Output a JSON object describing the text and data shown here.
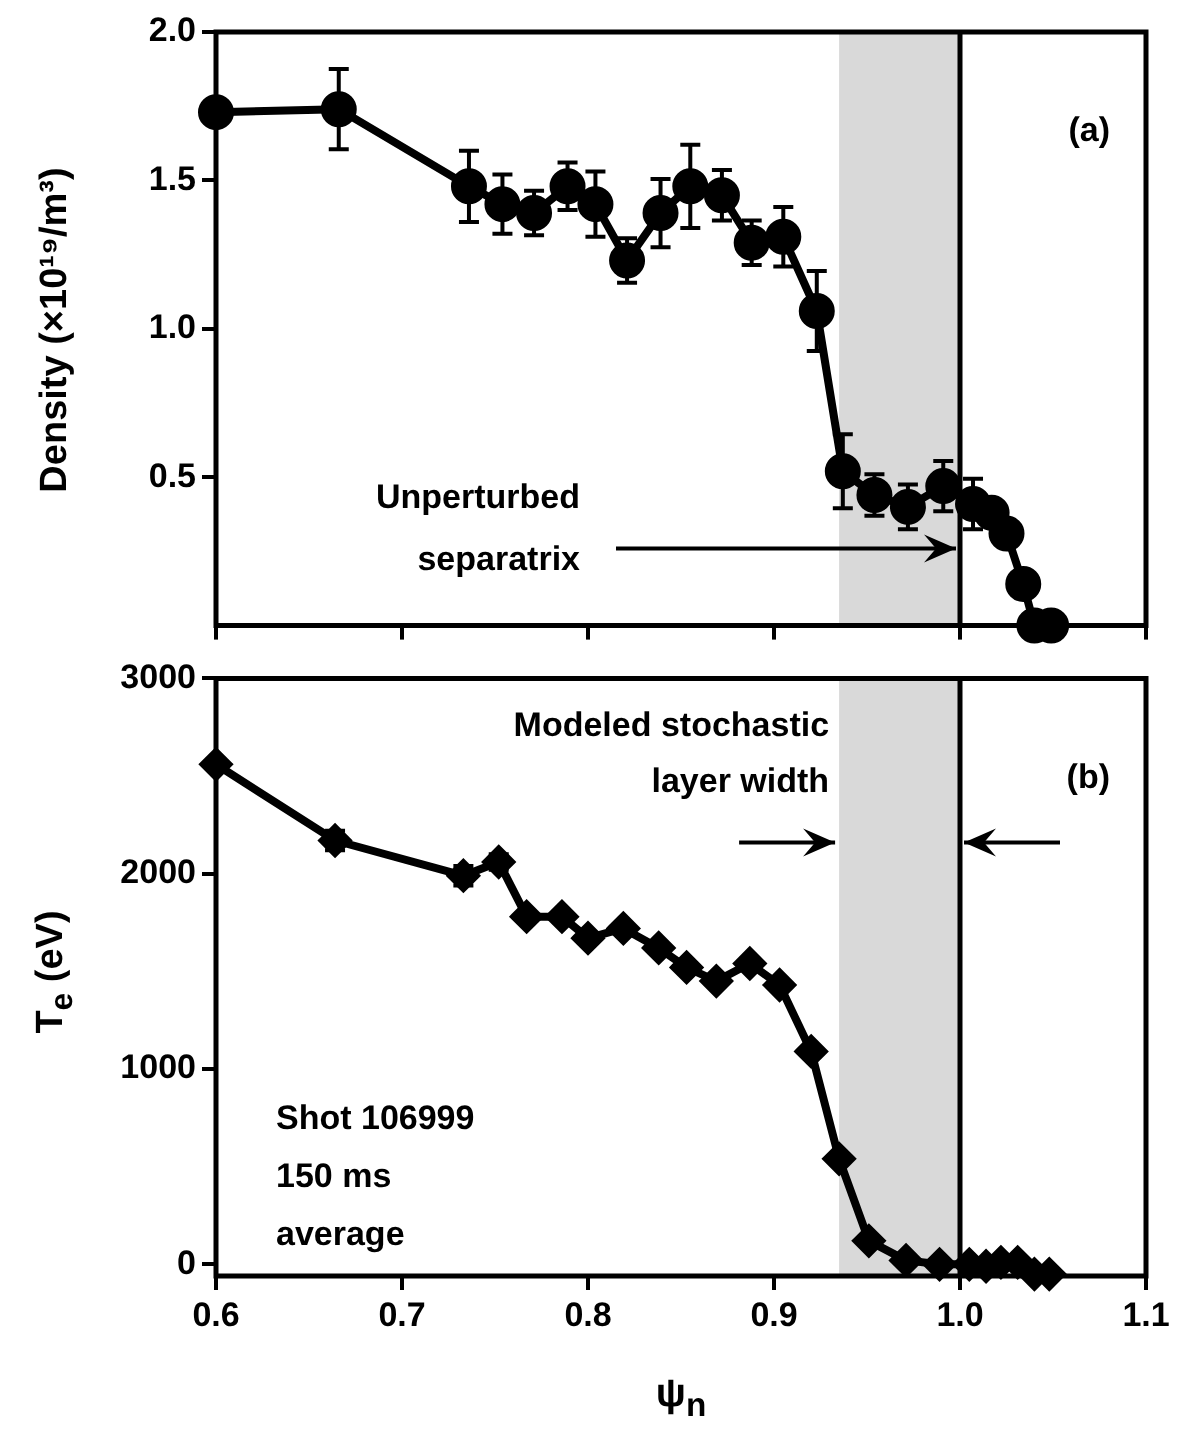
{
  "chart_data": [
    {
      "type": "line",
      "ylabel": "Density (×10¹⁹/m³)",
      "marker": "circle",
      "tick_labels": "y",
      "x": [
        0.6,
        0.666,
        0.736,
        0.754,
        0.771,
        0.789,
        0.804,
        0.821,
        0.839,
        0.855,
        0.872,
        0.888,
        0.905,
        0.923,
        0.937,
        0.954,
        0.972,
        0.991,
        1.007,
        1.017,
        1.025,
        1.034,
        1.04,
        1.049
      ],
      "series": [
        {
          "color": "#000000",
          "values": [
            1.73,
            1.74,
            1.48,
            1.42,
            1.39,
            1.48,
            1.42,
            1.23,
            1.39,
            1.48,
            1.45,
            1.29,
            1.31,
            1.06,
            0.52,
            0.44,
            0.4,
            0.47,
            0.41,
            0.38,
            0.31,
            0.14,
            0,
            0
          ],
          "errors": [
            null,
            0.135,
            0.12,
            0.1,
            0.075,
            0.08,
            0.11,
            0.075,
            0.115,
            0.14,
            0.085,
            0.075,
            0.1,
            0.135,
            0.125,
            0.07,
            0.075,
            0.085,
            0.085,
            null,
            null,
            null,
            null,
            null
          ]
        }
      ],
      "xlim": [
        0.6,
        1.1
      ],
      "xticks": [
        {
          "value": 0.6,
          "label": null
        },
        {
          "value": 0.7,
          "label": null
        },
        {
          "value": 0.8,
          "label": null
        },
        {
          "value": 0.9,
          "label": null
        },
        {
          "value": 1,
          "label": null
        },
        {
          "value": 1.1,
          "label": null
        }
      ],
      "ylim": [
        0,
        2
      ],
      "yticks": [
        0.5,
        {
          "value": 1,
          "label": "1.0"
        },
        1.5,
        {
          "value": 2,
          "label": "2.0"
        }
      ],
      "ref_lines": [
        {
          "axis": "x",
          "value": 1,
          "color": "#000000"
        }
      ],
      "bands": [
        {
          "axis": "x",
          "from": 0.935,
          "to": 1,
          "color": "#d9d9d9"
        }
      ],
      "annotations": [
        "(a)",
        {
          "text": "Unperturbed separatrix",
          "x": 1,
          "y": 0.26
        }
      ]
    },
    {
      "type": "line",
      "xlabel": "ψ$_{n}$",
      "ylabel": "T$_{e}$ (eV)",
      "marker": "diamond",
      "x": [
        0.6,
        0.664,
        0.733,
        0.752,
        0.767,
        0.786,
        0.8,
        0.819,
        0.838,
        0.853,
        0.869,
        0.887,
        0.903,
        0.92,
        0.935,
        0.951,
        0.971,
        0.989,
        1.005,
        1.014,
        1.022,
        1.031,
        1.04,
        1.048
      ],
      "series": [
        {
          "color": "#000000",
          "values": [
            2560,
            2170,
            1990,
            2060,
            1780,
            1780,
            1670,
            1720,
            1620,
            1520,
            1450,
            1540,
            1430,
            1090,
            540,
            120,
            20,
            0,
            0,
            -10,
            10,
            10,
            -50,
            -50
          ],
          "errors": [
            null,
            50,
            50,
            40,
            null,
            null,
            null,
            null,
            null,
            null,
            null,
            null,
            null,
            null,
            null,
            null,
            null,
            null,
            null,
            null,
            null,
            null,
            null,
            null
          ]
        }
      ],
      "xlim": [
        0.6,
        1.1
      ],
      "xticks": [
        0.6,
        0.7,
        0.8,
        0.9,
        {
          "value": 1,
          "label": "1.0"
        },
        1.1
      ],
      "ylim": [
        -60,
        3000
      ],
      "yticks": [
        0,
        1000,
        2000,
        3000
      ],
      "ref_lines": [
        {
          "axis": "x",
          "value": 1,
          "color": "#000000"
        }
      ],
      "bands": [
        {
          "axis": "x",
          "from": 0.935,
          "to": 1,
          "color": "#d9d9d9"
        }
      ],
      "annotations": [
        "(b)",
        {
          "text": "Modeled stochastic layer width",
          "x": 0.935,
          "y": 2160
        },
        "Shot 106999 150 ms average"
      ]
    }
  ]
}
